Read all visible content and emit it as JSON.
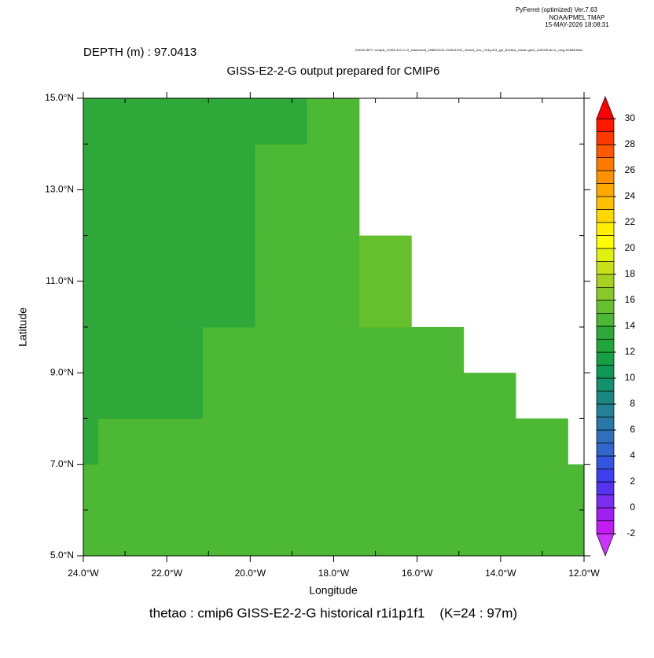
{
  "chart_data": {
    "type": "heatmap",
    "header_lines": [
      "PyFerret (optimized) Ver.7.63",
      "NOAA/PMEL TMAP",
      "15-MAY-2026 18:08:31"
    ],
    "dataset": "DATA SET: cmip6_GISS-E2-2-G_historical_18500101-20351231_0mea_1m_r1i1p1f1_gn_thetao_mean.grid_nl2025-lev1_orig.SOBENAL",
    "depth_label": "DEPTH (m) : 97.0413",
    "title": "GISS-E2-2-G output prepared for CMIP6",
    "footer": "thetao : cmip6 GISS-E2-2-G historical r1i1p1f1    (K=24 : 97m)",
    "xlabel": "Longitude",
    "ylabel": "Latitude",
    "xlim": [
      -24,
      -12
    ],
    "ylim": [
      5,
      15
    ],
    "xticks": [
      {
        "value": -24,
        "label": "24.0°W"
      },
      {
        "value": -22,
        "label": "22.0°W"
      },
      {
        "value": -20,
        "label": "20.0°W"
      },
      {
        "value": -18,
        "label": "18.0°W"
      },
      {
        "value": -16,
        "label": "16.0°W"
      },
      {
        "value": -14,
        "label": "14.0°W"
      },
      {
        "value": -12,
        "label": "12.0°W"
      }
    ],
    "xminor": [
      -23,
      -21,
      -19,
      -17,
      -15,
      -13
    ],
    "yticks": [
      {
        "value": 5,
        "label": "5.0°N"
      },
      {
        "value": 7,
        "label": "7.0°N"
      },
      {
        "value": 9,
        "label": "9.0°N"
      },
      {
        "value": 11,
        "label": "11.0°N"
      },
      {
        "value": 13,
        "label": "13.0°N"
      },
      {
        "value": 15,
        "label": "15.0°N"
      }
    ],
    "yminor": [
      6,
      8,
      10,
      12,
      14
    ],
    "x_edges": [
      -24.89,
      -23.64,
      -22.39,
      -21.14,
      -19.89,
      -18.64,
      -17.39,
      -16.14,
      -14.89,
      -13.64,
      -12.39,
      -11.14
    ],
    "y_edges": [
      5,
      6,
      7,
      8,
      9,
      10,
      11,
      12,
      13,
      14,
      15
    ],
    "values": [
      [
        14.5,
        14.5,
        14.5,
        14.5,
        14.5,
        14.5,
        14.5,
        14.5,
        14.5,
        14.5,
        14.5
      ],
      [
        14.5,
        14.5,
        14.5,
        14.5,
        14.5,
        14.5,
        14.5,
        14.5,
        14.5,
        14.5,
        14.5
      ],
      [
        13.5,
        14.5,
        14.5,
        14.5,
        14.5,
        14.5,
        14.5,
        14.5,
        14.5,
        14.5,
        null
      ],
      [
        13.5,
        13.5,
        13.5,
        14.5,
        14.5,
        14.5,
        14.5,
        14.5,
        14.5,
        null,
        null
      ],
      [
        13.5,
        13.5,
        13.5,
        14.5,
        14.5,
        14.5,
        14.5,
        14.5,
        null,
        null,
        null
      ],
      [
        13.5,
        13.5,
        13.5,
        13.5,
        14.5,
        14.5,
        15.5,
        null,
        null,
        null,
        null
      ],
      [
        13.5,
        13.5,
        13.5,
        13.5,
        14.5,
        14.5,
        15.5,
        null,
        null,
        null,
        null
      ],
      [
        13.5,
        13.5,
        13.5,
        13.5,
        14.5,
        14.5,
        null,
        null,
        null,
        null,
        null
      ],
      [
        13.5,
        13.5,
        13.5,
        13.5,
        14.5,
        14.5,
        null,
        null,
        null,
        null,
        null
      ],
      [
        13.5,
        13.5,
        13.5,
        13.5,
        13.5,
        14.5,
        null,
        null,
        null,
        null,
        null
      ]
    ],
    "levels": [
      -2,
      -1,
      0,
      1,
      2,
      3,
      4,
      5,
      6,
      7,
      8,
      9,
      10,
      11,
      12,
      13,
      14,
      15,
      16,
      17,
      18,
      19,
      20,
      21,
      22,
      23,
      24,
      25,
      26,
      27,
      28,
      29,
      30
    ],
    "colors": [
      "#c41bf5",
      "#a020f0",
      "#7a2cf2",
      "#5533f0",
      "#3f3ff0",
      "#3355e0",
      "#3366cc",
      "#2f6fbb",
      "#2a78a8",
      "#238095",
      "#1a8880",
      "#14906a",
      "#129856",
      "#16a046",
      "#22a63c",
      "#2ea838",
      "#4cb833",
      "#66c02e",
      "#88c828",
      "#a8d020",
      "#c8e018",
      "#e0f010",
      "#ffff00",
      "#fff000",
      "#ffd800",
      "#ffc000",
      "#ffa800",
      "#ff9000",
      "#ff7800",
      "#ff5800",
      "#ff3800",
      "#ff1800"
    ],
    "over_color": "#ff0000",
    "under_color": "#cc33ff",
    "colorbar_ticks": [
      -2,
      0,
      2,
      4,
      6,
      8,
      10,
      12,
      14,
      16,
      18,
      20,
      22,
      24,
      26,
      28,
      30
    ]
  }
}
